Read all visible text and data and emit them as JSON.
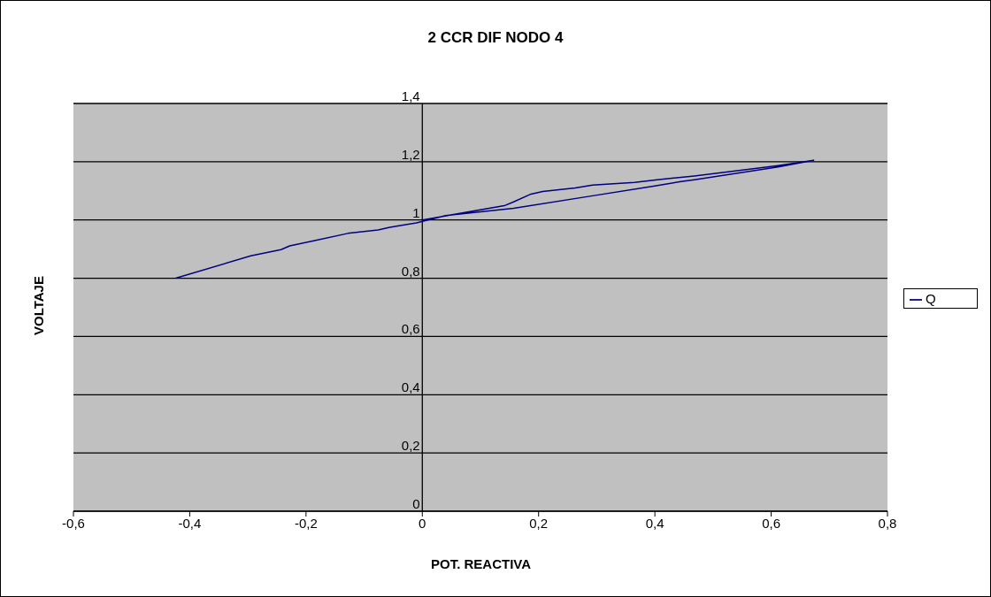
{
  "chart_data": {
    "type": "line",
    "title": "2 CCR DIF NODO 4",
    "xlabel": "POT. REACTIVA",
    "ylabel": "VOLTAJE",
    "xlim": [
      -0.6,
      0.8
    ],
    "xticks": [
      {
        "value": -0.6,
        "label": "-0,6"
      },
      {
        "value": -0.4,
        "label": "-0,4"
      },
      {
        "value": -0.2,
        "label": "-0,2"
      },
      0,
      {
        "value": 0.2,
        "label": "0,2"
      },
      {
        "value": 0.4,
        "label": "0,4"
      },
      {
        "value": 0.6,
        "label": "0,6"
      },
      {
        "value": 0.8,
        "label": "0,8"
      }
    ],
    "ylim": [
      0,
      1.4
    ],
    "yticks": [
      0,
      {
        "value": 0.2,
        "label": "0,2"
      },
      {
        "value": 0.4,
        "label": "0,4"
      },
      {
        "value": 0.6,
        "label": "0,6"
      },
      {
        "value": 0.8,
        "label": "0,8"
      },
      1,
      {
        "value": 1.2,
        "label": "1,2"
      },
      {
        "value": 1.4,
        "label": "1,4"
      }
    ],
    "grid": "y",
    "legend": "right",
    "marker": "none",
    "line_style": "solid",
    "series": [
      {
        "name": "Q",
        "color": "#000080",
        "x": [
          -0.424,
          -0.295,
          -0.243,
          -0.228,
          -0.185,
          -0.128,
          -0.076,
          -0.056,
          -0.01,
          0.04,
          0.157,
          0.293,
          0.4,
          0.445,
          0.468,
          0.612,
          0.673,
          0.612,
          0.517,
          0.468,
          0.404,
          0.365,
          0.293,
          0.263,
          0.207,
          0.187,
          0.157,
          0.141,
          0
        ],
        "values": [
          0.8,
          0.877,
          0.898,
          0.911,
          0.929,
          0.954,
          0.966,
          0.975,
          0.99,
          1.015,
          1.04,
          1.083,
          1.117,
          1.132,
          1.138,
          1.182,
          1.205,
          1.187,
          1.163,
          1.151,
          1.138,
          1.129,
          1.12,
          1.11,
          1.098,
          1.089,
          1.062,
          1.049,
          1.0
        ]
      }
    ]
  }
}
